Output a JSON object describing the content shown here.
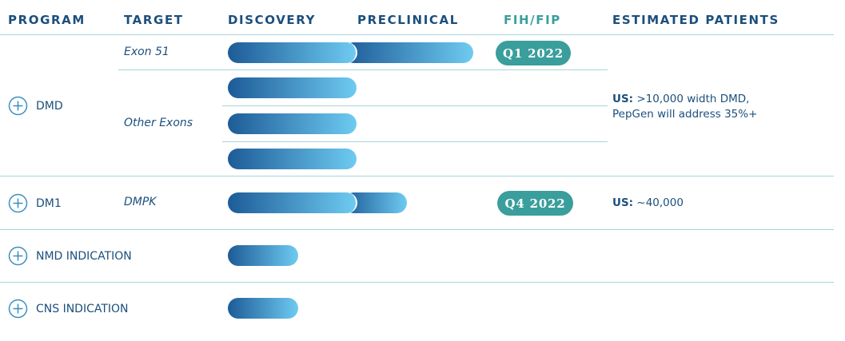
{
  "header": {
    "columns": [
      "PROGRAM",
      "TARGET",
      "DISCOVERY",
      "PRECLINICAL",
      "FIH/FIP",
      "ESTIMATED PATIENTS"
    ]
  },
  "programs": [
    {
      "name": "DMD",
      "targets": [
        "Exon 51",
        "Other Exons"
      ],
      "milestone": "Q1 2022",
      "patients": {
        "label": "US:",
        "text": ">10,000 width DMD, PepGen will address 35%+"
      }
    },
    {
      "name": "DM1",
      "targets": [
        "DMPK"
      ],
      "milestone": "Q4 2022",
      "patients": {
        "label": "US:",
        "text": "~40,000"
      }
    },
    {
      "name": "NMD INDICATION"
    },
    {
      "name": "CNS INDICATION"
    }
  ]
}
